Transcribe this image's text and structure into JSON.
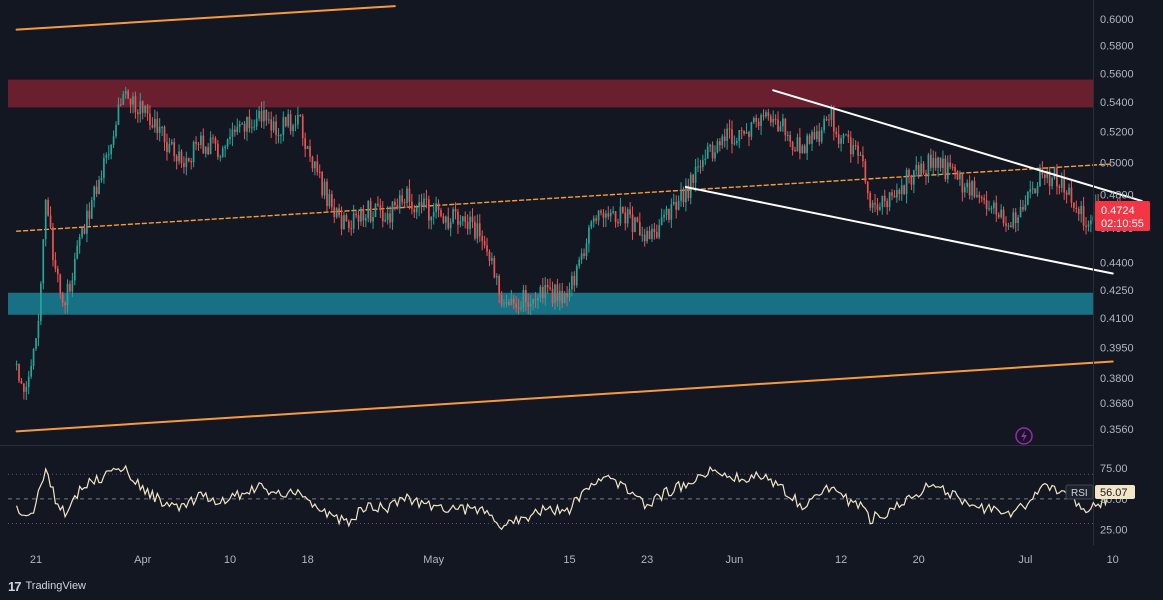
{
  "app": {
    "brand": "TradingView",
    "logo_icon": "tradingview-logo-icon",
    "alert_icon": "lightning-icon"
  },
  "colors": {
    "background": "#131722",
    "bull": "#26a69a",
    "bear": "#ef5350",
    "resistance_zone": "#b2263a",
    "support_zone": "#1a8fa6",
    "channel": "#f79a3e",
    "wedge": "#ffffff",
    "rsi_line": "#f2e6c6",
    "price_label": "#f23645"
  },
  "chart_data": [
    {
      "type": "candlestick",
      "title": "",
      "y_scale": "log",
      "ylim": [
        0.352,
        0.607
      ],
      "y_ticks": [
        "0.6000",
        "0.5800",
        "0.5600",
        "0.5400",
        "0.5200",
        "0.5000",
        "0.4800",
        "0.4600",
        "0.4400",
        "0.4250",
        "0.4100",
        "0.3950",
        "0.3800",
        "0.3680",
        "0.3560"
      ],
      "x_ticks": [
        "21",
        "Apr",
        "10",
        "18",
        "May",
        "15",
        "23",
        "Jun",
        "12",
        "20",
        "Jul",
        "10"
      ],
      "last_price": "0.4724",
      "countdown": "02:10:55",
      "zones": [
        {
          "name": "resistance",
          "from": 0.5362,
          "to": 0.5555
        },
        {
          "name": "support",
          "from": 0.4118,
          "to": 0.4235
        }
      ],
      "trendlines": [
        {
          "name": "channel-upper",
          "style": "solid",
          "from": [
            "Mar 19",
            0.592
          ],
          "to": [
            "Apr 27",
            0.61
          ]
        },
        {
          "name": "channel-mid",
          "style": "dashed",
          "from": [
            "Mar 19",
            0.458
          ],
          "to": [
            "Jul 10",
            0.499
          ]
        },
        {
          "name": "channel-lower",
          "style": "solid",
          "from": [
            "Mar 19",
            0.355
          ],
          "to": [
            "Jul 10",
            0.388
          ]
        },
        {
          "name": "wedge-upper",
          "style": "solid",
          "from": [
            "Jun 5",
            0.548
          ],
          "to": [
            "Jul 13",
            0.476
          ]
        },
        {
          "name": "wedge-lower",
          "style": "solid",
          "from": [
            "May 27",
            0.4845
          ],
          "to": [
            "Jul 10",
            0.434
          ]
        }
      ],
      "price_path": [
        [
          "Mar 19",
          0.385
        ],
        [
          "Mar 20",
          0.372
        ],
        [
          "Mar 21",
          0.395
        ],
        [
          "Mar 22",
          0.478
        ],
        [
          "Mar 23",
          0.432
        ],
        [
          "Mar 24",
          0.418
        ],
        [
          "Mar 26",
          0.462
        ],
        [
          "Mar 28",
          0.5
        ],
        [
          "Mar 30",
          0.548
        ],
        [
          "Apr 1",
          0.533
        ],
        [
          "Apr 3",
          0.518
        ],
        [
          "Apr 5",
          0.5
        ],
        [
          "Apr 7",
          0.513
        ],
        [
          "Apr 9",
          0.507
        ],
        [
          "Apr 11",
          0.52
        ],
        [
          "Apr 13",
          0.53
        ],
        [
          "Apr 15",
          0.523
        ],
        [
          "Apr 17",
          0.528
        ],
        [
          "Apr 18",
          0.508
        ],
        [
          "Apr 20",
          0.478
        ],
        [
          "Apr 22",
          0.46
        ],
        [
          "Apr 24",
          0.472
        ],
        [
          "Apr 26",
          0.465
        ],
        [
          "Apr 28",
          0.478
        ],
        [
          "Apr 30",
          0.472
        ],
        [
          "May 2",
          0.466
        ],
        [
          "May 4",
          0.464
        ],
        [
          "May 6",
          0.455
        ],
        [
          "May 8",
          0.422
        ],
        [
          "May 10",
          0.42
        ],
        [
          "May 12",
          0.422
        ],
        [
          "May 15",
          0.423
        ],
        [
          "May 17",
          0.458
        ],
        [
          "May 19",
          0.472
        ],
        [
          "May 21",
          0.466
        ],
        [
          "May 23",
          0.452
        ],
        [
          "May 25",
          0.465
        ],
        [
          "May 27",
          0.48
        ],
        [
          "May 29",
          0.505
        ],
        [
          "May 31",
          0.515
        ],
        [
          "Jun 2",
          0.52
        ],
        [
          "Jun 4",
          0.53
        ],
        [
          "Jun 6",
          0.522
        ],
        [
          "Jun 8",
          0.508
        ],
        [
          "Jun 10",
          0.52
        ],
        [
          "Jun 11",
          0.528
        ],
        [
          "Jun 12",
          0.515
        ],
        [
          "Jun 14",
          0.505
        ],
        [
          "Jun 15",
          0.47
        ],
        [
          "Jun 17",
          0.478
        ],
        [
          "Jun 19",
          0.49
        ],
        [
          "Jun 21",
          0.498
        ],
        [
          "Jun 23",
          0.495
        ],
        [
          "Jun 25",
          0.484
        ],
        [
          "Jun 27",
          0.475
        ],
        [
          "Jun 29",
          0.462
        ],
        [
          "Jul 1",
          0.474
        ],
        [
          "Jul 3",
          0.493
        ],
        [
          "Jul 5",
          0.487
        ],
        [
          "Jul 7",
          0.466
        ],
        [
          "Jul 9",
          0.47
        ],
        [
          "Jul 11",
          0.4724
        ]
      ]
    },
    {
      "type": "line",
      "series": [
        {
          "name": "RSI",
          "last_value": "56.07"
        }
      ],
      "ylim": [
        15,
        88
      ],
      "y_ticks": [
        "75.00",
        "50.00",
        "25.00"
      ],
      "levels": [
        70,
        50,
        30
      ],
      "rsi_path": [
        [
          "Mar 19",
          42
        ],
        [
          "Mar 20",
          34
        ],
        [
          "Mar 21",
          45
        ],
        [
          "Mar 22",
          76
        ],
        [
          "Mar 23",
          50
        ],
        [
          "Mar 24",
          40
        ],
        [
          "Mar 26",
          62
        ],
        [
          "Mar 28",
          68
        ],
        [
          "Mar 30",
          76
        ],
        [
          "Apr 1",
          58
        ],
        [
          "Apr 3",
          48
        ],
        [
          "Apr 5",
          42
        ],
        [
          "Apr 7",
          52
        ],
        [
          "Apr 9",
          47
        ],
        [
          "Apr 11",
          54
        ],
        [
          "Apr 13",
          60
        ],
        [
          "Apr 15",
          53
        ],
        [
          "Apr 17",
          58
        ],
        [
          "Apr 18",
          48
        ],
        [
          "Apr 20",
          38
        ],
        [
          "Apr 22",
          30
        ],
        [
          "Apr 24",
          44
        ],
        [
          "Apr 26",
          42
        ],
        [
          "Apr 28",
          52
        ],
        [
          "Apr 30",
          46
        ],
        [
          "May 2",
          43
        ],
        [
          "May 4",
          42
        ],
        [
          "May 6",
          40
        ],
        [
          "May 8",
          28
        ],
        [
          "May 10",
          34
        ],
        [
          "May 12",
          40
        ],
        [
          "May 15",
          42
        ],
        [
          "May 17",
          62
        ],
        [
          "May 19",
          66
        ],
        [
          "May 21",
          58
        ],
        [
          "May 23",
          45
        ],
        [
          "May 25",
          55
        ],
        [
          "May 27",
          62
        ],
        [
          "May 29",
          72
        ],
        [
          "May 31",
          70
        ],
        [
          "Jun 2",
          66
        ],
        [
          "Jun 4",
          70
        ],
        [
          "Jun 6",
          58
        ],
        [
          "Jun 8",
          45
        ],
        [
          "Jun 10",
          55
        ],
        [
          "Jun 11",
          60
        ],
        [
          "Jun 12",
          52
        ],
        [
          "Jun 14",
          44
        ],
        [
          "Jun 15",
          34
        ],
        [
          "Jun 17",
          40
        ],
        [
          "Jun 19",
          52
        ],
        [
          "Jun 21",
          60
        ],
        [
          "Jun 23",
          55
        ],
        [
          "Jun 25",
          46
        ],
        [
          "Jun 27",
          42
        ],
        [
          "Jun 29",
          36
        ],
        [
          "Jul 1",
          44
        ],
        [
          "Jul 3",
          62
        ],
        [
          "Jul 5",
          56
        ],
        [
          "Jul 7",
          40
        ],
        [
          "Jul 9",
          48
        ],
        [
          "Jul 11",
          56.07
        ]
      ]
    }
  ]
}
